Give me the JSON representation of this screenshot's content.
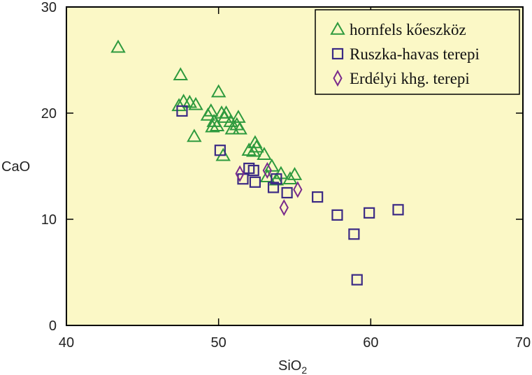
{
  "chart_data": {
    "type": "scatter",
    "xlabel": "SiO",
    "xlabel_sub": "2",
    "ylabel": "CaO",
    "xlim": [
      40,
      70
    ],
    "ylim": [
      0,
      30
    ],
    "x_ticks": [
      "40",
      "50",
      "60",
      "70"
    ],
    "y_ticks": [
      "0",
      "10",
      "20",
      "30"
    ],
    "x_tick_values": [
      40,
      50,
      60,
      70
    ],
    "y_tick_values": [
      0,
      10,
      20,
      30
    ],
    "grid": false,
    "legend_position": "top-right",
    "background_color": "#fbf8c6",
    "series": [
      {
        "name": "hornfels kőeszköz",
        "marker": "triangle",
        "color": "#2e9a3e",
        "points": [
          [
            43.4,
            26.2
          ],
          [
            47.5,
            23.6
          ],
          [
            47.4,
            20.7
          ],
          [
            47.7,
            21.1
          ],
          [
            48.1,
            21.0
          ],
          [
            48.5,
            20.8
          ],
          [
            48.4,
            17.8
          ],
          [
            49.3,
            19.8
          ],
          [
            49.5,
            20.2
          ],
          [
            49.6,
            18.7
          ],
          [
            49.7,
            19.2
          ],
          [
            49.9,
            18.8
          ],
          [
            50.0,
            22.0
          ],
          [
            50.2,
            20.0
          ],
          [
            50.4,
            19.6
          ],
          [
            50.5,
            20.0
          ],
          [
            50.3,
            16.0
          ],
          [
            50.8,
            19.2
          ],
          [
            50.9,
            18.5
          ],
          [
            51.2,
            18.9
          ],
          [
            51.3,
            19.6
          ],
          [
            51.4,
            18.5
          ],
          [
            52.0,
            16.5
          ],
          [
            52.4,
            17.2
          ],
          [
            52.5,
            16.8
          ],
          [
            52.3,
            16.4
          ],
          [
            53.0,
            16.1
          ],
          [
            53.5,
            15.0
          ],
          [
            53.2,
            14.0
          ],
          [
            54.1,
            14.3
          ],
          [
            54.7,
            13.8
          ],
          [
            55.0,
            14.2
          ],
          [
            53.8,
            13.7
          ]
        ]
      },
      {
        "name": "Ruszka-havas terepi",
        "marker": "square",
        "color": "#3b2a85",
        "points": [
          [
            47.6,
            20.2
          ],
          [
            50.1,
            16.5
          ],
          [
            51.6,
            13.8
          ],
          [
            52.0,
            14.8
          ],
          [
            52.3,
            14.6
          ],
          [
            52.4,
            13.5
          ],
          [
            53.6,
            13.0
          ],
          [
            53.8,
            13.8
          ],
          [
            54.5,
            12.5
          ],
          [
            56.5,
            12.1
          ],
          [
            57.8,
            10.4
          ],
          [
            58.9,
            8.6
          ],
          [
            59.9,
            10.6
          ],
          [
            61.8,
            10.9
          ],
          [
            59.1,
            4.3
          ]
        ]
      },
      {
        "name": "Erdélyi khg. terepi",
        "marker": "diamond",
        "color": "#7a2b8c",
        "points": [
          [
            51.4,
            14.3
          ],
          [
            53.2,
            14.6
          ],
          [
            54.3,
            11.1
          ],
          [
            55.2,
            12.8
          ]
        ]
      }
    ]
  }
}
